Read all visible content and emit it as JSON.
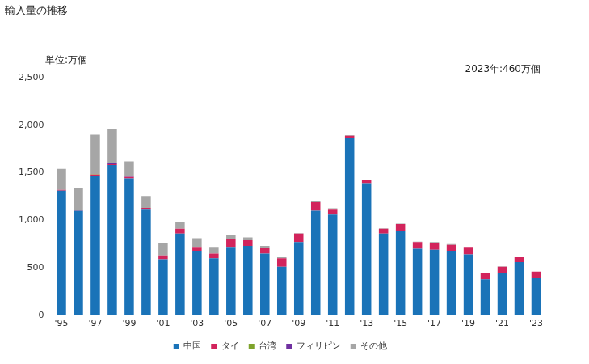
{
  "chart_data": {
    "type": "bar",
    "title": "輸入量の推移",
    "y_label": "単位:万個",
    "annotations": [
      "2023年:460万個"
    ],
    "categories": [
      "'95",
      null,
      "'97",
      null,
      "'99",
      null,
      "'01",
      null,
      "'03",
      null,
      "'05",
      null,
      "'07",
      null,
      "'09",
      null,
      "'11",
      null,
      "'13",
      null,
      "'15",
      null,
      "'17",
      null,
      "'19",
      null,
      "'21",
      null,
      "'23"
    ],
    "series": [
      {
        "name": "中国",
        "color": "#1a73b8",
        "values": [
          1310,
          1100,
          1470,
          1580,
          1440,
          1120,
          590,
          860,
          680,
          600,
          720,
          730,
          650,
          510,
          770,
          1100,
          1060,
          1870,
          1390,
          860,
          890,
          700,
          690,
          680,
          640,
          380,
          450,
          560,
          390
        ]
      },
      {
        "name": "タイ",
        "color": "#d2245c",
        "values": [
          10,
          5,
          10,
          10,
          15,
          10,
          40,
          50,
          40,
          50,
          80,
          60,
          60,
          90,
          90,
          90,
          60,
          20,
          30,
          50,
          70,
          70,
          70,
          60,
          80,
          60,
          60,
          50,
          70
        ]
      },
      {
        "name": "台湾",
        "color": "#7ea32b",
        "values": [
          0,
          0,
          5,
          0,
          0,
          0,
          0,
          0,
          0,
          0,
          0,
          0,
          0,
          0,
          0,
          0,
          0,
          0,
          0,
          0,
          0,
          0,
          0,
          0,
          0,
          0,
          0,
          0,
          0
        ]
      },
      {
        "name": "フィリピン",
        "color": "#7030a0",
        "values": [
          0,
          0,
          0,
          10,
          5,
          0,
          0,
          0,
          0,
          0,
          0,
          0,
          0,
          0,
          0,
          0,
          0,
          0,
          0,
          0,
          0,
          0,
          0,
          0,
          0,
          0,
          0,
          0,
          0
        ]
      },
      {
        "name": "その他",
        "color": "#a6a6a6",
        "values": [
          220,
          235,
          415,
          355,
          160,
          125,
          130,
          70,
          90,
          70,
          40,
          30,
          20,
          10,
          5,
          10,
          5,
          5,
          5,
          5,
          5,
          5,
          10,
          10,
          0,
          0,
          5,
          0,
          0
        ]
      }
    ],
    "stacked": true,
    "ylim": [
      0,
      2500
    ],
    "yticks": [
      0,
      500,
      {
        "value": 1000,
        "label": "1,000"
      },
      {
        "value": 1500,
        "label": "1,500"
      },
      {
        "value": 2000,
        "label": "2,000"
      },
      {
        "value": 2500,
        "label": "2,500"
      }
    ],
    "grid": false,
    "legend": "bottom"
  }
}
